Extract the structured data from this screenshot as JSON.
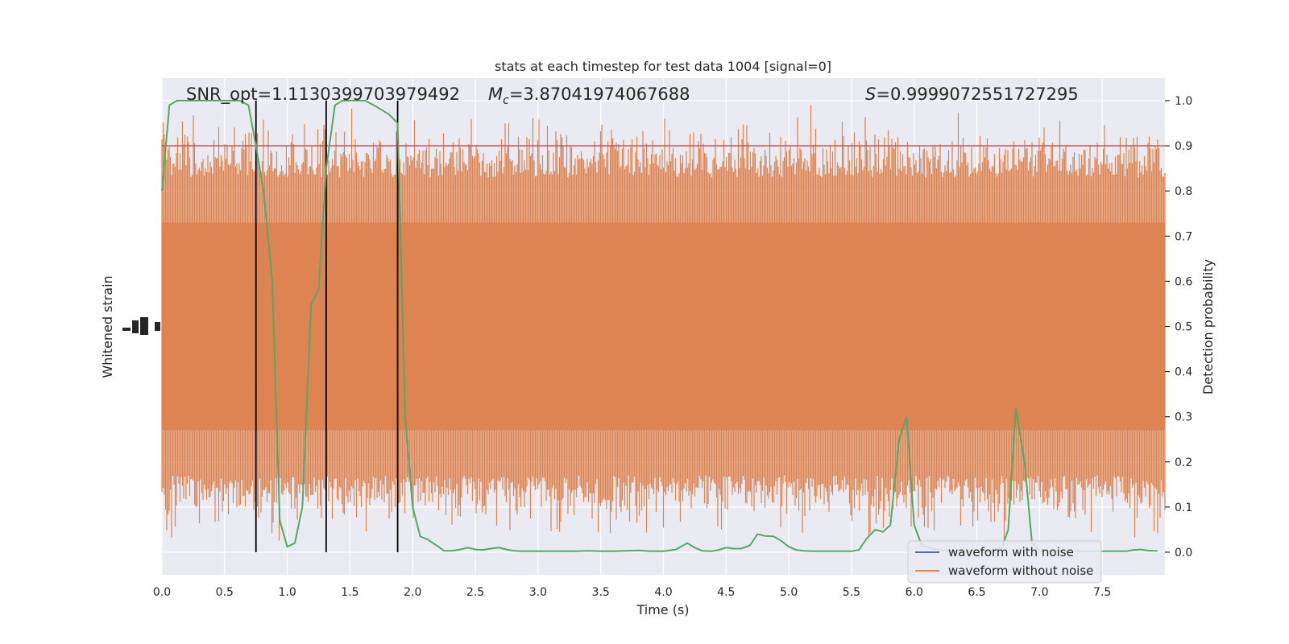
{
  "chart_data": {
    "type": "line",
    "title": "stats at each timestep for test data 1004 [signal=0]",
    "xlabel": "Time (s)",
    "ylabel_left": "Whitened strain",
    "ylabel_right": "Detection probability",
    "xlim": [
      0,
      8.0
    ],
    "ylim_right": [
      -0.05,
      1.05
    ],
    "grid": true,
    "x_ticks": [
      "0.0",
      "0.5",
      "1.0",
      "1.5",
      "2.0",
      "2.5",
      "3.0",
      "3.5",
      "4.0",
      "4.5",
      "5.0",
      "5.5",
      "6.0",
      "6.5",
      "7.0",
      "7.5"
    ],
    "y_ticks_right": [
      "0.0",
      "0.1",
      "0.2",
      "0.3",
      "0.4",
      "0.5",
      "0.6",
      "0.7",
      "0.8",
      "0.9",
      "1.0"
    ],
    "annotations": {
      "snr": "SNR_opt=1.1130399703979492",
      "mc_symbol": "M",
      "mc_sub": "c",
      "mc_value": "=3.87041974067688",
      "s_symbol": "S",
      "s_value": "=0.9999072551727295"
    },
    "threshold": 0.9,
    "vertical_lines_x": [
      0.75,
      1.31,
      1.88
    ],
    "legend": {
      "position": "lower right",
      "items": [
        "waveform with noise",
        "waveform without noise"
      ]
    },
    "series": [
      {
        "name": "Detection probability",
        "x": [
          0,
          0.06,
          0.12,
          0.19,
          0.25,
          0.31,
          0.38,
          0.44,
          0.5,
          0.56,
          0.62,
          0.69,
          0.75,
          0.81,
          0.88,
          0.94,
          1.0,
          1.06,
          1.12,
          1.19,
          1.25,
          1.31,
          1.38,
          1.44,
          1.5,
          1.56,
          1.62,
          1.69,
          1.75,
          1.81,
          1.88,
          1.94,
          2.0,
          2.06,
          2.12,
          2.19,
          2.25,
          2.31,
          2.38,
          2.44,
          2.5,
          2.56,
          2.62,
          2.69,
          2.75,
          2.81,
          2.88,
          2.94,
          3.0,
          3.1,
          3.2,
          3.3,
          3.4,
          3.5,
          3.6,
          3.7,
          3.8,
          3.9,
          4.0,
          4.1,
          4.19,
          4.25,
          4.31,
          4.38,
          4.44,
          4.5,
          4.56,
          4.62,
          4.69,
          4.75,
          4.81,
          4.88,
          4.94,
          5.0,
          5.06,
          5.12,
          5.19,
          5.25,
          5.31,
          5.38,
          5.5,
          5.56,
          5.62,
          5.69,
          5.75,
          5.81,
          5.88,
          5.94,
          6.0,
          6.06,
          6.12,
          6.2,
          6.3,
          6.4,
          6.5,
          6.6,
          6.7,
          6.75,
          6.81,
          6.88,
          6.94,
          7.0,
          7.06,
          7.12,
          7.2,
          7.3,
          7.4,
          7.5,
          7.6,
          7.69,
          7.75,
          7.81,
          7.88,
          7.94
        ],
        "y": [
          0.8,
          0.99,
          1.0,
          1.0,
          1.0,
          1.0,
          1.0,
          1.0,
          1.0,
          1.0,
          1.0,
          0.99,
          0.9,
          0.8,
          0.6,
          0.07,
          0.012,
          0.02,
          0.1,
          0.55,
          0.58,
          0.85,
          0.99,
          1.0,
          1.0,
          1.0,
          1.0,
          0.99,
          0.98,
          0.97,
          0.95,
          0.3,
          0.1,
          0.035,
          0.028,
          0.015,
          0.003,
          0.003,
          0.006,
          0.01,
          0.006,
          0.005,
          0.008,
          0.01,
          0.006,
          0.003,
          0.002,
          0.002,
          0.002,
          0.002,
          0.002,
          0.002,
          0.003,
          0.002,
          0.002,
          0.003,
          0.004,
          0.002,
          0.002,
          0.006,
          0.02,
          0.01,
          0.003,
          0.002,
          0.005,
          0.01,
          0.008,
          0.008,
          0.015,
          0.04,
          0.036,
          0.035,
          0.025,
          0.012,
          0.005,
          0.003,
          0.002,
          0.002,
          0.002,
          0.002,
          0.002,
          0.005,
          0.03,
          0.05,
          0.045,
          0.06,
          0.25,
          0.3,
          0.06,
          0.015,
          0.01,
          0.005,
          0.002,
          0.002,
          0.002,
          0.003,
          0.01,
          0.05,
          0.32,
          0.2,
          0.02,
          0.004,
          0.002,
          0.002,
          0.002,
          0.002,
          0.002,
          0.002,
          0.002,
          0.002,
          0.005,
          0.006,
          0.003,
          0.003
        ]
      }
    ]
  }
}
